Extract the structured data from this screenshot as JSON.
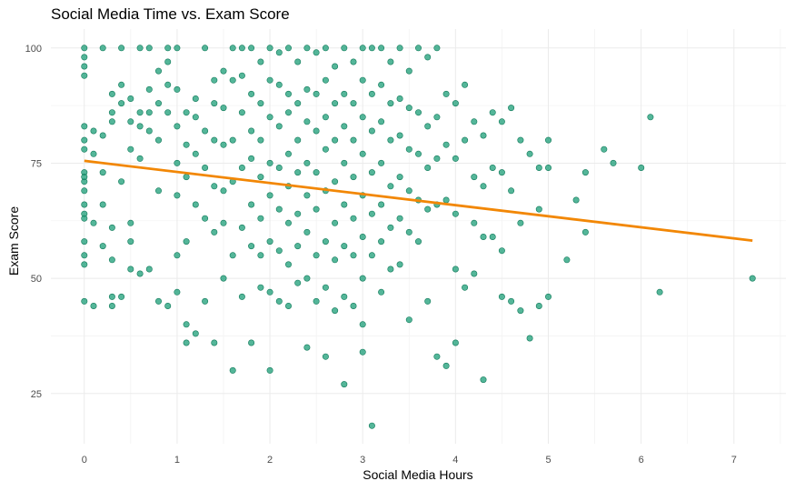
{
  "chart_data": {
    "type": "scatter",
    "title": "Social Media Time vs. Exam Score",
    "xlabel": "Social Media Hours",
    "ylabel": "Exam Score",
    "xlim": [
      -0.36,
      7.56
    ],
    "ylim": [
      14.1,
      104.1
    ],
    "xticks": [
      0,
      1,
      2,
      3,
      4,
      5,
      6,
      7
    ],
    "yticks": [
      25,
      50,
      75,
      100
    ],
    "grid": true,
    "legend": "none",
    "colors": {
      "points_fill": "#1b9e77",
      "points_stroke": "#117a5a",
      "trend_line": "#f28705",
      "grid": "#ebebeb",
      "tick_text": "#4d4d4d"
    },
    "series": [
      {
        "type": "scatter",
        "x": [
          0.0,
          0.0,
          0.0,
          0.0,
          0.0,
          0.0,
          0.0,
          0.0,
          0.0,
          0.0,
          0.0,
          0.0,
          0.0,
          0.0,
          0.0,
          0.0,
          0.0,
          0.0,
          0.1,
          0.1,
          0.1,
          0.1,
          0.2,
          0.2,
          0.2,
          0.2,
          0.2,
          0.3,
          0.3,
          0.3,
          0.3,
          0.3,
          0.3,
          0.3,
          0.4,
          0.4,
          0.4,
          0.4,
          0.4,
          0.5,
          0.5,
          0.5,
          0.5,
          0.5,
          0.5,
          0.6,
          0.6,
          0.6,
          0.6,
          0.6,
          0.7,
          0.7,
          0.7,
          0.7,
          0.7,
          0.8,
          0.8,
          0.8,
          0.8,
          0.8,
          0.9,
          0.9,
          0.9,
          0.9,
          0.9,
          1.0,
          1.0,
          1.0,
          1.0,
          1.0,
          1.0,
          1.0,
          1.1,
          1.1,
          1.1,
          1.1,
          1.1,
          1.1,
          1.2,
          1.2,
          1.2,
          1.2,
          1.2,
          1.3,
          1.3,
          1.3,
          1.3,
          1.3,
          1.4,
          1.4,
          1.4,
          1.4,
          1.4,
          1.4,
          1.5,
          1.5,
          1.5,
          1.5,
          1.5,
          1.5,
          1.6,
          1.6,
          1.6,
          1.6,
          1.6,
          1.6,
          1.7,
          1.7,
          1.7,
          1.7,
          1.7,
          1.7,
          1.8,
          1.8,
          1.8,
          1.8,
          1.8,
          1.8,
          1.8,
          1.9,
          1.9,
          1.9,
          1.9,
          1.9,
          1.9,
          1.9,
          2.0,
          2.0,
          2.0,
          2.0,
          2.0,
          2.0,
          2.0,
          2.0,
          2.1,
          2.1,
          2.1,
          2.1,
          2.1,
          2.1,
          2.1,
          2.2,
          2.2,
          2.2,
          2.2,
          2.2,
          2.2,
          2.2,
          2.2,
          2.3,
          2.3,
          2.3,
          2.3,
          2.3,
          2.3,
          2.3,
          2.4,
          2.4,
          2.4,
          2.4,
          2.4,
          2.4,
          2.4,
          2.4,
          2.5,
          2.5,
          2.5,
          2.5,
          2.5,
          2.5,
          2.5,
          2.6,
          2.6,
          2.6,
          2.6,
          2.6,
          2.6,
          2.6,
          2.6,
          2.7,
          2.7,
          2.7,
          2.7,
          2.7,
          2.7,
          2.7,
          2.8,
          2.8,
          2.8,
          2.8,
          2.8,
          2.8,
          2.8,
          2.8,
          2.9,
          2.9,
          2.9,
          2.9,
          2.9,
          2.9,
          2.9,
          3.0,
          3.0,
          3.0,
          3.0,
          3.0,
          3.0,
          3.0,
          3.0,
          3.0,
          3.1,
          3.1,
          3.1,
          3.1,
          3.1,
          3.1,
          3.1,
          3.2,
          3.2,
          3.2,
          3.2,
          3.2,
          3.2,
          3.2,
          3.3,
          3.3,
          3.3,
          3.3,
          3.3,
          3.3,
          3.4,
          3.4,
          3.4,
          3.4,
          3.4,
          3.4,
          3.5,
          3.5,
          3.5,
          3.5,
          3.5,
          3.5,
          3.6,
          3.6,
          3.6,
          3.6,
          3.6,
          3.7,
          3.7,
          3.7,
          3.7,
          3.7,
          3.8,
          3.8,
          3.8,
          3.8,
          3.8,
          3.9,
          3.9,
          3.9,
          3.9,
          4.0,
          4.0,
          4.0,
          4.0,
          4.0,
          4.1,
          4.1,
          4.1,
          4.2,
          4.2,
          4.2,
          4.2,
          4.3,
          4.3,
          4.3,
          4.3,
          4.4,
          4.4,
          4.4,
          4.5,
          4.5,
          4.5,
          4.5,
          4.6,
          4.6,
          4.6,
          4.7,
          4.7,
          4.7,
          4.8,
          4.8,
          4.9,
          4.9,
          4.9,
          5.0,
          5.0,
          5.0,
          5.2,
          5.3,
          5.4,
          5.4,
          5.6,
          5.7,
          6.0,
          6.1,
          6.2,
          7.2
        ],
        "y": [
          100,
          98,
          96,
          94,
          83,
          80,
          78,
          73,
          71,
          66,
          64,
          58,
          55,
          53,
          45,
          72,
          69,
          63,
          82,
          77,
          62,
          44,
          100,
          81,
          73,
          66,
          57,
          90,
          86,
          84,
          61,
          54,
          46,
          44,
          100,
          92,
          88,
          71,
          46,
          89,
          84,
          78,
          62,
          58,
          52,
          100,
          86,
          83,
          76,
          51,
          100,
          91,
          86,
          82,
          52,
          95,
          88,
          80,
          69,
          45,
          100,
          97,
          92,
          86,
          44,
          100,
          91,
          83,
          75,
          68,
          55,
          47,
          86,
          79,
          72,
          58,
          36,
          40,
          89,
          85,
          77,
          66,
          38,
          100,
          82,
          74,
          63,
          45,
          93,
          88,
          80,
          70,
          60,
          36,
          95,
          87,
          79,
          69,
          62,
          50,
          100,
          93,
          80,
          71,
          55,
          30,
          100,
          94,
          86,
          74,
          61,
          46,
          100,
          90,
          82,
          76,
          66,
          57,
          36,
          97,
          88,
          80,
          72,
          63,
          55,
          48,
          100,
          93,
          85,
          75,
          68,
          58,
          47,
          30,
          99,
          92,
          83,
          74,
          65,
          56,
          45,
          100,
          90,
          86,
          77,
          70,
          62,
          53,
          44,
          97,
          88,
          80,
          73,
          64,
          57,
          49,
          100,
          91,
          84,
          75,
          68,
          60,
          50,
          35,
          99,
          90,
          82,
          73,
          65,
          55,
          45,
          100,
          93,
          85,
          78,
          69,
          58,
          48,
          33,
          96,
          88,
          80,
          71,
          62,
          54,
          43,
          100,
          90,
          83,
          75,
          66,
          57,
          46,
          27,
          97,
          88,
          80,
          72,
          63,
          55,
          44,
          100,
          93,
          85,
          77,
          68,
          59,
          50,
          40,
          34,
          100,
          90,
          82,
          73,
          64,
          55,
          18,
          100,
          92,
          84,
          75,
          66,
          58,
          47,
          97,
          88,
          80,
          70,
          61,
          52,
          100,
          89,
          81,
          72,
          63,
          53,
          95,
          87,
          78,
          69,
          60,
          41,
          100,
          86,
          77,
          67,
          58,
          98,
          83,
          74,
          65,
          45,
          100,
          85,
          76,
          66,
          33,
          90,
          79,
          67,
          31,
          88,
          76,
          64,
          52,
          36,
          92,
          80,
          48,
          84,
          72,
          62,
          51,
          81,
          70,
          59,
          28,
          86,
          74,
          59,
          84,
          73,
          56,
          46,
          87,
          69,
          45,
          80,
          62,
          43,
          77,
          37,
          74,
          65,
          44,
          80,
          74,
          46,
          54,
          67,
          73,
          60,
          78,
          75,
          74,
          85,
          47,
          50
        ]
      },
      {
        "type": "line",
        "name": "",
        "x": [
          0.0,
          7.2
        ],
        "y": [
          75.5,
          58.2
        ]
      }
    ]
  }
}
